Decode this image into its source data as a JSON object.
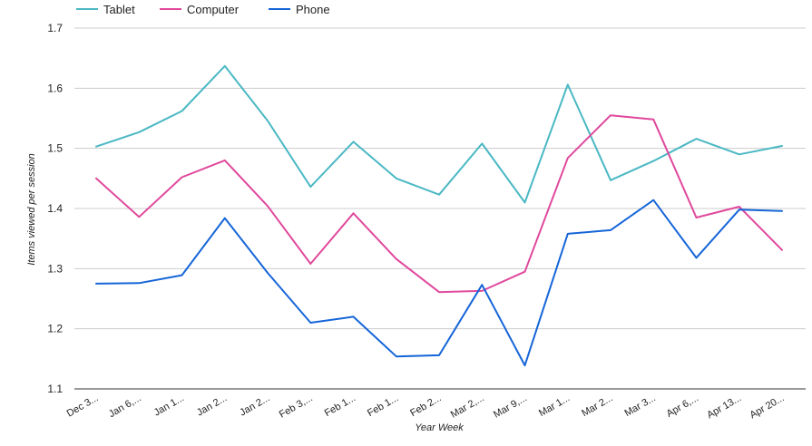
{
  "chart_data": {
    "type": "line",
    "xlabel": "Year Week",
    "ylabel": "Items viewed per session",
    "ylim": [
      1.1,
      1.7
    ],
    "yticks": [
      "1.1",
      "1.2",
      "1.3",
      "1.4",
      "1.5",
      "1.6",
      "1.7"
    ],
    "grid": true,
    "legend_position": "top-left",
    "categories": [
      "Dec 3...",
      "Jan 6,...",
      "Jan 1...",
      "Jan 2...",
      "Jan 2...",
      "Feb 3,...",
      "Feb 1...",
      "Feb 1...",
      "Feb 2...",
      "Mar 2,...",
      "Mar 9,...",
      "Mar 1...",
      "Mar 2...",
      "Mar 3...",
      "Apr 6,...",
      "Apr 13...",
      "Apr 20..."
    ],
    "series": [
      {
        "name": "Tablet",
        "color": "#4ab8c4",
        "values": [
          1.503,
          1.527,
          1.562,
          1.637,
          1.546,
          1.436,
          1.511,
          1.45,
          1.423,
          1.508,
          1.41,
          1.606,
          1.447,
          1.479,
          1.516,
          1.49,
          1.504
        ]
      },
      {
        "name": "Computer",
        "color": "#e0489c",
        "values": [
          1.45,
          1.386,
          1.452,
          1.48,
          1.404,
          1.308,
          1.392,
          1.316,
          1.261,
          1.263,
          1.295,
          1.484,
          1.555,
          1.548,
          1.385,
          1.403,
          1.331
        ]
      },
      {
        "name": "Phone",
        "color": "#1565d8",
        "values": [
          1.275,
          1.276,
          1.289,
          1.384,
          1.293,
          1.21,
          1.22,
          1.154,
          1.156,
          1.273,
          1.139,
          1.358,
          1.364,
          1.414,
          1.318,
          1.398,
          1.396
        ]
      }
    ]
  }
}
